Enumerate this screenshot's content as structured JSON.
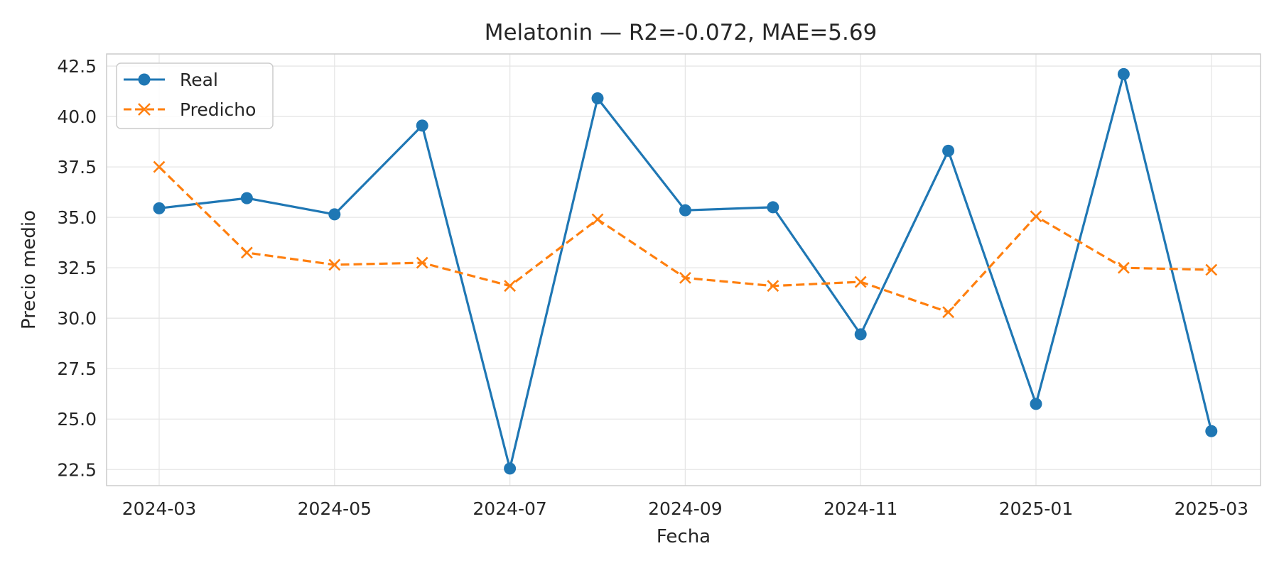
{
  "chart_data": {
    "type": "line",
    "title": "Melatonin — R2=-0.072, MAE=5.69",
    "xlabel": "Fecha",
    "ylabel": "Precio medio",
    "x": [
      "2024-03",
      "2024-04",
      "2024-05",
      "2024-06",
      "2024-07",
      "2024-08",
      "2024-09",
      "2024-10",
      "2024-11",
      "2024-12",
      "2025-01",
      "2025-02",
      "2025-03"
    ],
    "x_ticks": [
      "2024-03",
      "2024-05",
      "2024-07",
      "2024-09",
      "2024-11",
      "2025-01",
      "2025-03"
    ],
    "y_ticks": [
      22.5,
      25.0,
      27.5,
      30.0,
      32.5,
      35.0,
      37.5,
      40.0,
      42.5
    ],
    "ylim": [
      21.7,
      43.1
    ],
    "grid": true,
    "legend": "upper-left",
    "series": [
      {
        "name": "Real",
        "color": "#1f77b4",
        "line_style": "solid",
        "marker": "circle",
        "values": [
          35.45,
          35.95,
          35.15,
          39.55,
          22.55,
          40.9,
          35.35,
          35.5,
          29.2,
          38.3,
          25.75,
          42.1,
          24.4
        ]
      },
      {
        "name": "Predicho",
        "color": "#ff7f0e",
        "line_style": "dashed",
        "marker": "x",
        "values": [
          37.5,
          33.25,
          32.65,
          32.75,
          31.6,
          34.9,
          32.0,
          31.6,
          31.8,
          30.3,
          35.05,
          32.5,
          32.4
        ]
      }
    ]
  }
}
